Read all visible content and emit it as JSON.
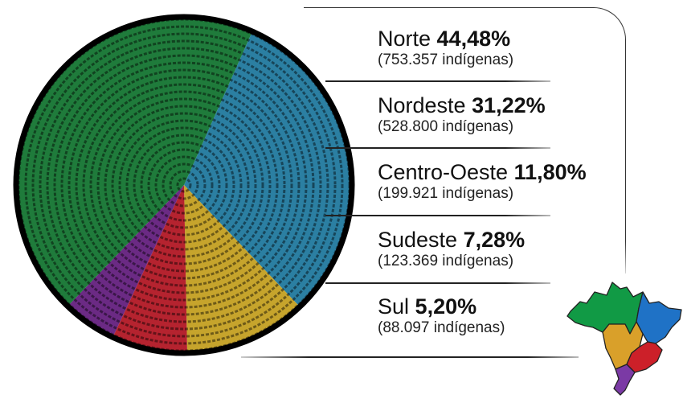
{
  "chart_data": {
    "type": "pie",
    "title": "",
    "start_angle_deg": 24,
    "slices": [
      {
        "name": "Nordeste",
        "percent": 31.22,
        "percent_label": "31,22%",
        "count_label": "(528.800 indígenas)",
        "color": "#2b7fa2"
      },
      {
        "name": "Centro-Oeste",
        "percent": 11.8,
        "percent_label": "11,80%",
        "count_label": "(199.921 indígenas)",
        "color": "#c6a42c"
      },
      {
        "name": "Sudeste",
        "percent": 7.28,
        "percent_label": "7,28%",
        "count_label": "(123.369 indígenas)",
        "color": "#b5232f"
      },
      {
        "name": "Sul",
        "percent": 5.2,
        "percent_label": "5,20%",
        "count_label": "(88.097 indígenas)",
        "color": "#6b2a84"
      },
      {
        "name": "Norte",
        "percent": 44.48,
        "percent_label": "44,48%",
        "count_label": "(753.357 indígenas)",
        "color": "#1f7b3b"
      }
    ]
  },
  "legend": [
    {
      "name": "Norte",
      "percent_label": "44,48%",
      "count_label": "(753.357 indígenas)"
    },
    {
      "name": "Nordeste",
      "percent_label": "31,22%",
      "count_label": "(528.800 indígenas)"
    },
    {
      "name": "Centro-Oeste",
      "percent_label": "11,80%",
      "count_label": "(199.921 indígenas)"
    },
    {
      "name": "Sudeste",
      "percent_label": "7,28%",
      "count_label": "(123.369 indígenas)"
    },
    {
      "name": "Sul",
      "percent_label": "5,20%",
      "count_label": "(88.097 indígenas)"
    }
  ],
  "map_colors": {
    "norte": "#119a45",
    "nordeste": "#1f72c6",
    "centro_oeste": "#d9a02a",
    "sudeste": "#cc2029",
    "sul": "#7b3aa5"
  }
}
